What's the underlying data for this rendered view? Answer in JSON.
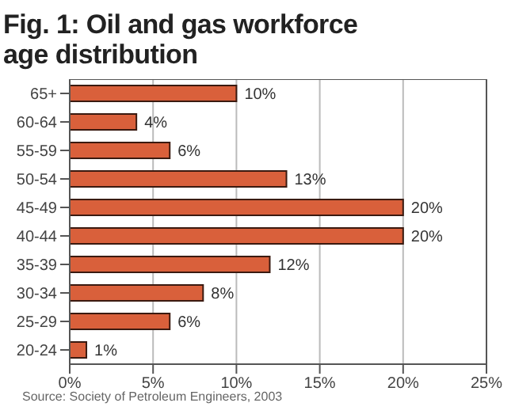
{
  "chart_data": {
    "type": "bar",
    "orientation": "horizontal",
    "title": "Fig. 1: Oil and gas workforce age distribution",
    "categories": [
      "65+",
      "60-64",
      "55-59",
      "50-54",
      "45-49",
      "40-44",
      "35-39",
      "30-34",
      "25-29",
      "20-24"
    ],
    "values": [
      10,
      4,
      6,
      13,
      20,
      20,
      12,
      8,
      6,
      1
    ],
    "value_labels": [
      "10%",
      "4%",
      "6%",
      "13%",
      "20%",
      "20%",
      "12%",
      "8%",
      "6%",
      "1%"
    ],
    "color": "#d9603b",
    "xlim": [
      0,
      25
    ],
    "xticks": [
      {
        "value": 0,
        "label": "0%"
      },
      {
        "value": 5,
        "label": "5%"
      },
      {
        "value": 10,
        "label": "10%"
      },
      {
        "value": 15,
        "label": "15%"
      },
      {
        "value": 20,
        "label": "20%"
      },
      {
        "value": 25,
        "label": "25%"
      }
    ],
    "grid": "x",
    "annotations": [
      "Source: Society of Petroleum Engineers, 2003"
    ]
  }
}
